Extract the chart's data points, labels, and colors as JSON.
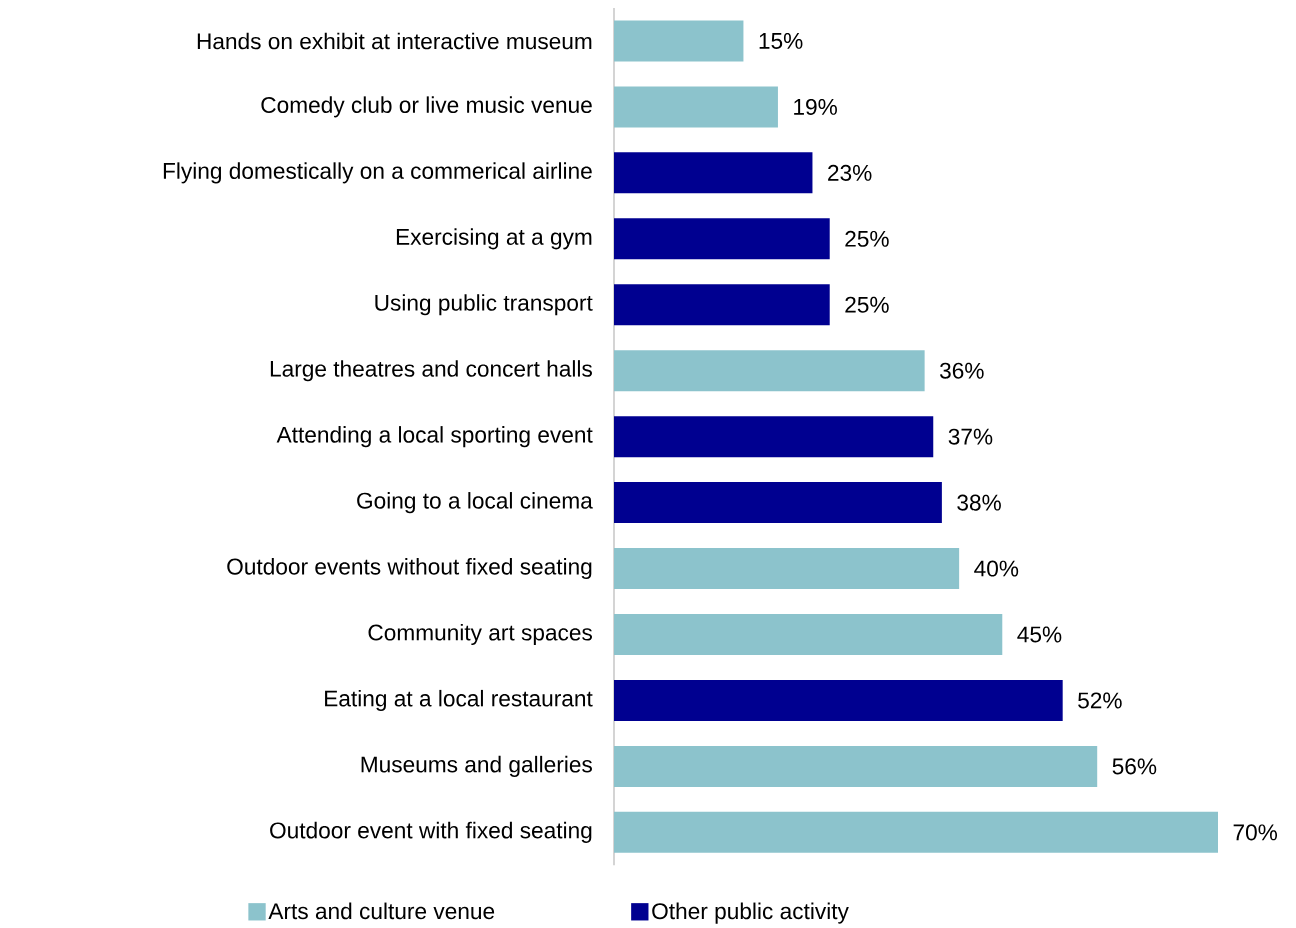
{
  "chart_data": {
    "type": "bar",
    "orientation": "horizontal",
    "categories": [
      "Hands on exhibit at interactive museum",
      "Comedy club or live music venue",
      "Flying domestically on a commerical airline",
      "Exercising at a gym",
      "Using public transport",
      "Large theatres and concert halls",
      "Attending a local sporting event",
      "Going to a local cinema",
      "Outdoor events without fixed seating",
      "Community art spaces",
      "Eating at a local restaurant",
      "Museums and galleries",
      "Outdoor event with fixed seating"
    ],
    "series": [
      {
        "name": "Arts and culture venue",
        "color": "#8cc3cc",
        "values": [
          15,
          19,
          null,
          null,
          null,
          36,
          null,
          null,
          40,
          45,
          null,
          56,
          70
        ],
        "value_labels": [
          "15%",
          "19%",
          null,
          null,
          null,
          "36%",
          null,
          null,
          "40%",
          "45%",
          null,
          "56%",
          "70%"
        ]
      },
      {
        "name": "Other public activity",
        "color": "#000090",
        "values": [
          null,
          null,
          23,
          25,
          25,
          null,
          37,
          38,
          null,
          null,
          52,
          null,
          null
        ],
        "value_labels": [
          null,
          null,
          "23%",
          "25%",
          "25%",
          null,
          "37%",
          "38%",
          null,
          null,
          "52%",
          null,
          null
        ]
      }
    ],
    "legend": "bottom"
  }
}
